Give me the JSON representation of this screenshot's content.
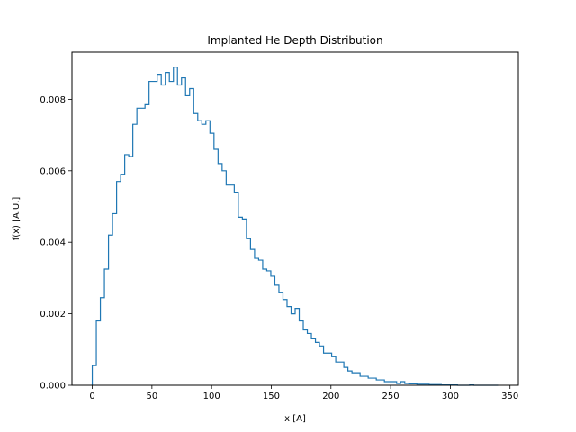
{
  "chart_data": {
    "type": "step-histogram",
    "title": "Implanted He Depth Distribution",
    "xlabel": "x [A]",
    "ylabel": "f(x) [A.U.]",
    "xlim": [
      -17,
      357
    ],
    "ylim": [
      0,
      0.00932
    ],
    "xticks": [
      0,
      50,
      100,
      150,
      200,
      250,
      300,
      350
    ],
    "yticks": [
      0.0,
      0.002,
      0.004,
      0.006,
      0.008
    ],
    "ytick_labels": [
      "0.000",
      "0.002",
      "0.004",
      "0.006",
      "0.008"
    ],
    "grid": false,
    "legend": "none",
    "series": [
      {
        "color": "#1f77b4",
        "bin_width": 3.4,
        "bin_start": 0,
        "values": [
          0.00055,
          0.0018,
          0.00245,
          0.00325,
          0.0042,
          0.0048,
          0.0057,
          0.0059,
          0.00645,
          0.0064,
          0.0073,
          0.00775,
          0.00775,
          0.00785,
          0.0085,
          0.0085,
          0.0087,
          0.0084,
          0.00875,
          0.0085,
          0.0089,
          0.0084,
          0.0086,
          0.0081,
          0.0083,
          0.0076,
          0.0074,
          0.0073,
          0.0074,
          0.00705,
          0.0066,
          0.0062,
          0.006,
          0.0056,
          0.0056,
          0.0054,
          0.0047,
          0.00465,
          0.0041,
          0.0038,
          0.00355,
          0.0035,
          0.00325,
          0.0032,
          0.00305,
          0.0028,
          0.0026,
          0.0024,
          0.0022,
          0.002,
          0.00215,
          0.0018,
          0.00155,
          0.00145,
          0.0013,
          0.0012,
          0.0011,
          0.0009,
          0.0009,
          0.0008,
          0.00065,
          0.00065,
          0.0005,
          0.0004,
          0.00035,
          0.00035,
          0.00025,
          0.00025,
          0.0002,
          0.0002,
          0.00015,
          0.00015,
          0.0001,
          0.0001,
          0.0001,
          5e-05,
          0.0001,
          5e-05,
          4e-05,
          4e-05,
          3e-05,
          3e-05,
          3e-05,
          2e-05,
          2e-05,
          2e-05,
          1e-05,
          1e-05,
          1e-05,
          1e-05,
          0.0,
          0.0,
          0.0,
          1e-05,
          0.0,
          0.0,
          0.0,
          0.0,
          0.0,
          0.0
        ]
      }
    ]
  }
}
